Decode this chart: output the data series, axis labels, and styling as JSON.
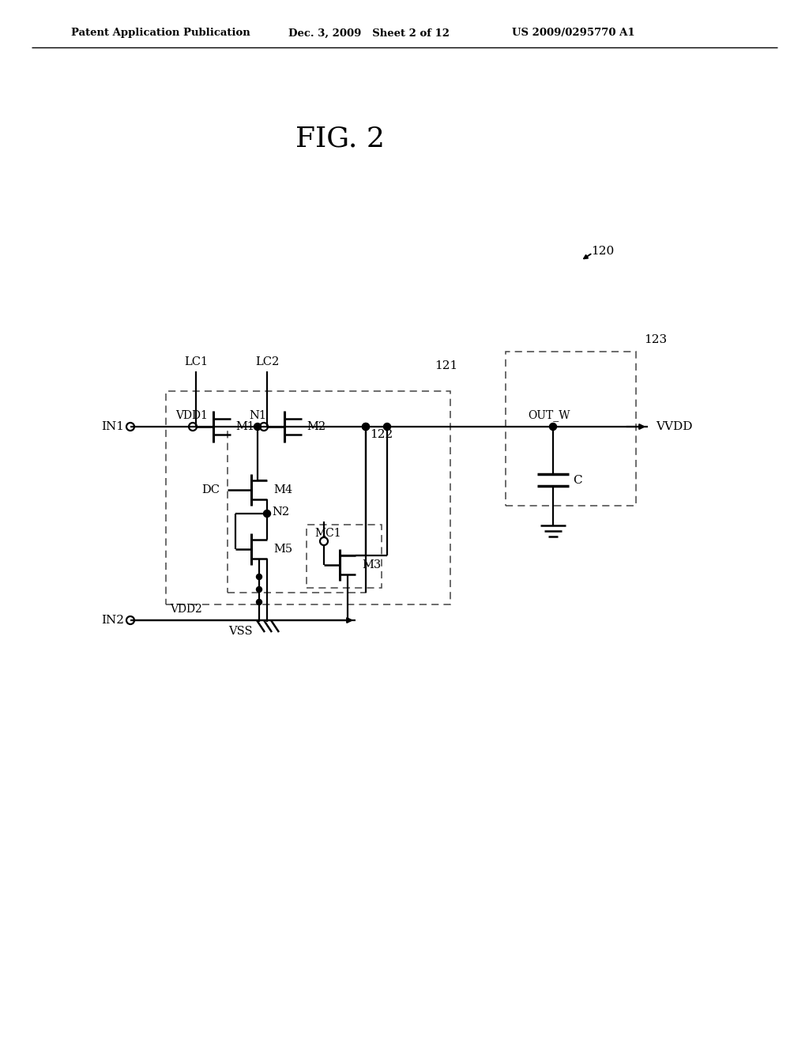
{
  "title": "FIG. 2",
  "header_left": "Patent Application Publication",
  "header_mid": "Dec. 3, 2009   Sheet 2 of 12",
  "header_right": "US 2009/0295770 A1",
  "bg_color": "#ffffff",
  "lc": "#000000",
  "label_121": "121",
  "label_122": "122",
  "label_mc1": "MC1",
  "label_123": "123",
  "label_120": "120",
  "fig_title": "FIG. 2"
}
